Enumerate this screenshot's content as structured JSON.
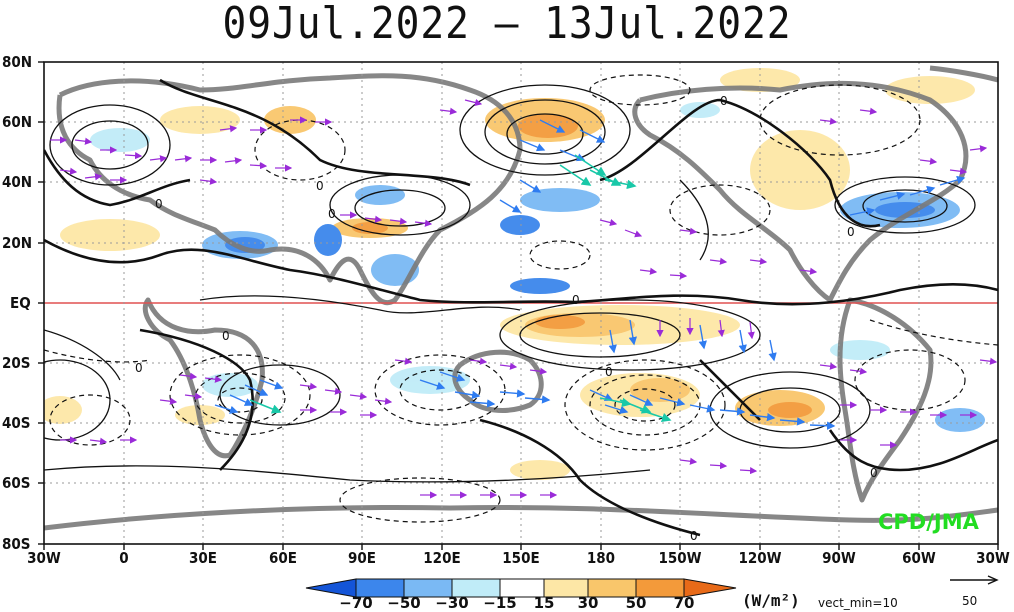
{
  "title": "09Jul.2022 – 13Jul.2022",
  "lat_labels": [
    "80N",
    "60N",
    "40N",
    "20N",
    "EQ",
    "20S",
    "40S",
    "60S",
    "80S"
  ],
  "lon_labels": [
    "30W",
    "0",
    "30E",
    "60E",
    "90E",
    "120E",
    "150E",
    "180",
    "150W",
    "120W",
    "90W",
    "60W",
    "30W"
  ],
  "contour_label": "0",
  "colorbar": {
    "levels": [
      "−70",
      "−50",
      "−30",
      "−15",
      "15",
      "30",
      "50",
      "70"
    ],
    "colors": [
      "#1455d8",
      "#3c86ec",
      "#7ab9f4",
      "#c0ecf8",
      "#ffffff",
      "#fde7a6",
      "#f9c66b",
      "#f39a3a",
      "#e86a18"
    ],
    "units": "(W/m²)",
    "vect_min": "vect_min=10",
    "ref_vector_value": "50"
  },
  "credit": "CPD/JMA",
  "colors": {
    "land_outline": "#7a7a7a",
    "equator": "#e05050",
    "vector_weak": "#9a2bd8",
    "vector_mid": "#2f7cf0",
    "vector_strong": "#19c8a8",
    "credit": "#22dd22"
  }
}
